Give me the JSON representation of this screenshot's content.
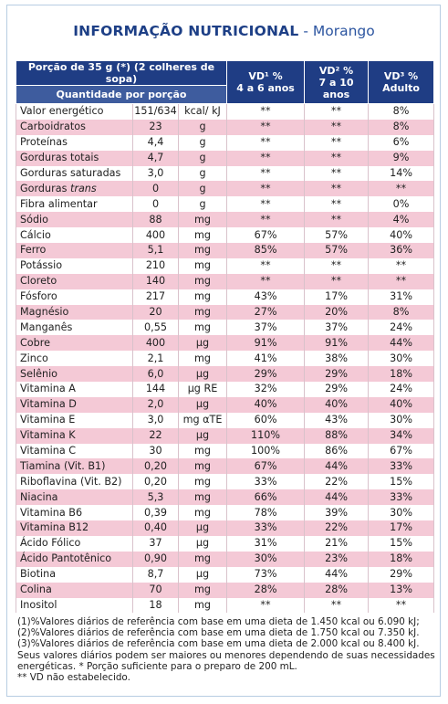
{
  "header": {
    "title": "INFORMAÇÃO NUTRICIONAL",
    "subtitle": "- Morango"
  },
  "table": {
    "portion": "Porção de 35 g (*) (2 colheres de sopa)",
    "quantity_label": "Quantidade por porção",
    "columns": [
      [
        "VD¹ %",
        "4 a 6 anos"
      ],
      [
        "VD² %",
        "7 a 10 anos"
      ],
      [
        "VD³ %",
        "Adulto"
      ]
    ],
    "rows": [
      {
        "name": "Valor energético",
        "qty": "151/634",
        "unit": "kcal/ kJ",
        "vd": [
          "**",
          "**",
          "8%"
        ]
      },
      {
        "name": "Carboidratos",
        "qty": "23",
        "unit": "g",
        "vd": [
          "**",
          "**",
          "8%"
        ]
      },
      {
        "name": "Proteínas",
        "qty": "4,4",
        "unit": "g",
        "vd": [
          "**",
          "**",
          "6%"
        ]
      },
      {
        "name": "Gorduras totais",
        "qty": "4,7",
        "unit": "g",
        "vd": [
          "**",
          "**",
          "9%"
        ]
      },
      {
        "name": "Gorduras saturadas",
        "qty": "3,0",
        "unit": "g",
        "vd": [
          "**",
          "**",
          "14%"
        ]
      },
      {
        "name": "Gorduras",
        "name_italic": "trans",
        "qty": "0",
        "unit": "g",
        "vd": [
          "**",
          "**",
          "**"
        ]
      },
      {
        "name": "Fibra alimentar",
        "qty": "0",
        "unit": "g",
        "vd": [
          "**",
          "**",
          "0%"
        ]
      },
      {
        "name": "Sódio",
        "qty": "88",
        "unit": "mg",
        "vd": [
          "**",
          "**",
          "4%"
        ]
      },
      {
        "name": "Cálcio",
        "qty": "400",
        "unit": "mg",
        "vd": [
          "67%",
          "57%",
          "40%"
        ]
      },
      {
        "name": "Ferro",
        "qty": "5,1",
        "unit": "mg",
        "vd": [
          "85%",
          "57%",
          "36%"
        ]
      },
      {
        "name": "Potássio",
        "qty": "210",
        "unit": "mg",
        "vd": [
          "**",
          "**",
          "**"
        ]
      },
      {
        "name": "Cloreto",
        "qty": "140",
        "unit": "mg",
        "vd": [
          "**",
          "**",
          "**"
        ]
      },
      {
        "name": "Fósforo",
        "qty": "217",
        "unit": "mg",
        "vd": [
          "43%",
          "17%",
          "31%"
        ]
      },
      {
        "name": "Magnésio",
        "qty": "20",
        "unit": "mg",
        "vd": [
          "27%",
          "20%",
          "8%"
        ]
      },
      {
        "name": "Manganês",
        "qty": "0,55",
        "unit": "mg",
        "vd": [
          "37%",
          "37%",
          "24%"
        ]
      },
      {
        "name": "Cobre",
        "qty": "400",
        "unit": "µg",
        "vd": [
          "91%",
          "91%",
          "44%"
        ]
      },
      {
        "name": "Zinco",
        "qty": "2,1",
        "unit": "mg",
        "vd": [
          "41%",
          "38%",
          "30%"
        ]
      },
      {
        "name": "Selênio",
        "qty": "6,0",
        "unit": "µg",
        "vd": [
          "29%",
          "29%",
          "18%"
        ]
      },
      {
        "name": "Vitamina A",
        "qty": "144",
        "unit": "µg RE",
        "vd": [
          "32%",
          "29%",
          "24%"
        ]
      },
      {
        "name": "Vitamina D",
        "qty": "2,0",
        "unit": "µg",
        "vd": [
          "40%",
          "40%",
          "40%"
        ]
      },
      {
        "name": "Vitamina E",
        "qty": "3,0",
        "unit": "mg αTE",
        "vd": [
          "60%",
          "43%",
          "30%"
        ]
      },
      {
        "name": "Vitamina K",
        "qty": "22",
        "unit": "µg",
        "vd": [
          "110%",
          "88%",
          "34%"
        ]
      },
      {
        "name": "Vitamina C",
        "qty": "30",
        "unit": "mg",
        "vd": [
          "100%",
          "86%",
          "67%"
        ]
      },
      {
        "name": "Tiamina (Vit. B1)",
        "qty": "0,20",
        "unit": "mg",
        "vd": [
          "67%",
          "44%",
          "33%"
        ]
      },
      {
        "name": "Riboflavina (Vit. B2)",
        "qty": "0,20",
        "unit": "mg",
        "vd": [
          "33%",
          "22%",
          "15%"
        ]
      },
      {
        "name": "Niacina",
        "qty": "5,3",
        "unit": "mg",
        "vd": [
          "66%",
          "44%",
          "33%"
        ]
      },
      {
        "name": "Vitamina B6",
        "qty": "0,39",
        "unit": "mg",
        "vd": [
          "78%",
          "39%",
          "30%"
        ]
      },
      {
        "name": "Vitamina B12",
        "qty": "0,40",
        "unit": "µg",
        "vd": [
          "33%",
          "22%",
          "17%"
        ]
      },
      {
        "name": "Ácido Fólico",
        "qty": "37",
        "unit": "µg",
        "vd": [
          "31%",
          "21%",
          "15%"
        ]
      },
      {
        "name": "Ácido Pantotênico",
        "qty": "0,90",
        "unit": "mg",
        "vd": [
          "30%",
          "23%",
          "18%"
        ]
      },
      {
        "name": "Biotina",
        "qty": "8,7",
        "unit": "µg",
        "vd": [
          "73%",
          "44%",
          "29%"
        ]
      },
      {
        "name": "Colina",
        "qty": "70",
        "unit": "mg",
        "vd": [
          "28%",
          "28%",
          "13%"
        ]
      },
      {
        "name": "Inositol",
        "qty": "18",
        "unit": "mg",
        "vd": [
          "**",
          "**",
          "**"
        ]
      }
    ]
  },
  "footnotes": [
    "(1)%Valores diários de referência com base em uma dieta de 1.450 kcal ou 6.090 kJ;",
    "(2)%Valores diários de referência com base em uma dieta de 1.750 kcal ou 7.350 kJ.",
    "(3)%Valores diários de referência com base em uma dieta de 2.000 kcal ou 8.400 kJ.",
    "Seus valores diários podem ser maiores ou menores dependendo de suas necessidades energéticas. * Porção suficiente para o preparo de 200 mL.",
    "** VD não estabelecido."
  ]
}
